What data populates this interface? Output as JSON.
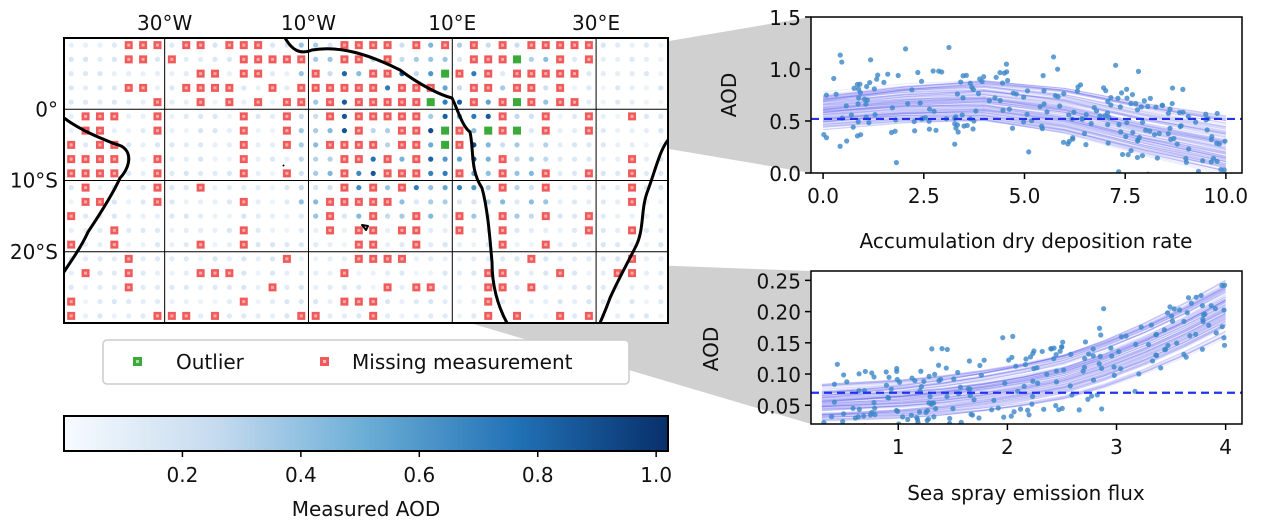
{
  "chart_data": [
    {
      "type": "heatmap",
      "panel": "map",
      "lon_ticks": [
        "30°W",
        "10°W",
        "10°E",
        "30°E"
      ],
      "lat_ticks": [
        "0°",
        "10°S",
        "20°S"
      ],
      "lon_range": [
        -44,
        40
      ],
      "lat_range": [
        -30,
        10
      ],
      "grid_step_deg": 2,
      "legend": {
        "outlier": "Outlier",
        "missing": "Missing measurement",
        "outlier_color": "#3aaa3a",
        "missing_color": "#f05a5a"
      },
      "colorbar": {
        "label": "Measured AOD",
        "ticks": [
          "0.2",
          "0.4",
          "0.6",
          "0.8",
          "1.0"
        ],
        "range": [
          0.0,
          1.02
        ],
        "cmap": "Blues",
        "colors": [
          "#f7fbff",
          "#c6dbef",
          "#6baed6",
          "#2171b5",
          "#08306b"
        ]
      }
    },
    {
      "type": "line",
      "panel": "top-right",
      "xlabel": "Accumulation dry deposition rate",
      "ylabel": "AOD",
      "x_ticks": [
        "0.0",
        "2.5",
        "5.0",
        "7.5",
        "10.0"
      ],
      "y_ticks": [
        "0.0",
        "0.5",
        "1.0",
        "1.5"
      ],
      "xlim": [
        -0.3,
        10.4
      ],
      "ylim": [
        0.0,
        1.5
      ],
      "reference_line": 0.52,
      "line_color": "#5555ee",
      "point_color": "#3a86c8",
      "mean_curve": [
        [
          0,
          0.6
        ],
        [
          2,
          0.67
        ],
        [
          4,
          0.7
        ],
        [
          6,
          0.6
        ],
        [
          8,
          0.42
        ],
        [
          10,
          0.27
        ]
      ]
    },
    {
      "type": "line",
      "panel": "bottom-right",
      "xlabel": "Sea spray emission flux",
      "ylabel": "AOD",
      "x_ticks": [
        "1",
        "2",
        "3",
        "4"
      ],
      "y_ticks": [
        "0.05",
        "0.10",
        "0.15",
        "0.20",
        "0.25"
      ],
      "xlim": [
        0.2,
        4.15
      ],
      "ylim": [
        0.02,
        0.265
      ],
      "reference_line": 0.07,
      "line_color": "#5555ee",
      "point_color": "#3a86c8",
      "mean_curve": [
        [
          0.3,
          0.052
        ],
        [
          1.0,
          0.058
        ],
        [
          1.5,
          0.066
        ],
        [
          2.0,
          0.078
        ],
        [
          2.5,
          0.095
        ],
        [
          3.0,
          0.123
        ],
        [
          3.5,
          0.16
        ],
        [
          4.0,
          0.205
        ]
      ]
    }
  ]
}
